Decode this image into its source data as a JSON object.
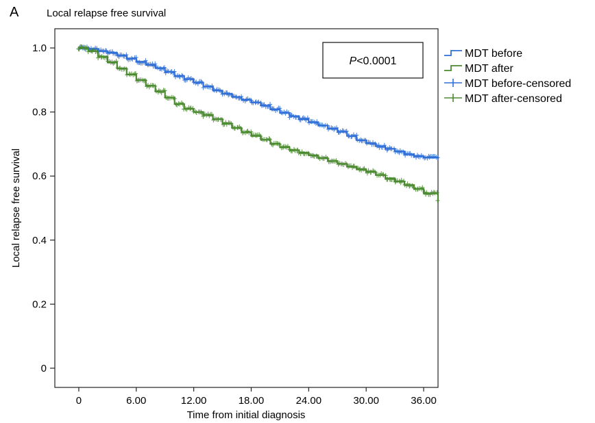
{
  "chart_data": {
    "type": "line",
    "panel_letter": "A",
    "title": "Local relapse free survival",
    "xlabel": "Time from initial diagnosis",
    "ylabel": "Local relapse free survival",
    "xlim": [
      -2.5,
      37.5
    ],
    "ylim": [
      -0.06,
      1.06
    ],
    "x_ticks": [
      0,
      6,
      12,
      18,
      24,
      30,
      36
    ],
    "x_tick_labels": [
      "0",
      "6.00",
      "12.00",
      "18.00",
      "24.00",
      "30.00",
      "36.00"
    ],
    "y_ticks": [
      0,
      0.2,
      0.4,
      0.6,
      0.8,
      1.0
    ],
    "y_tick_labels": [
      "0",
      "0.2",
      "0.4",
      "0.6",
      "0.8",
      "1.0"
    ],
    "annotation_prefix": "P",
    "annotation_suffix": "<0.0001",
    "legend_position": "right",
    "legend": [
      {
        "label": "MDT before",
        "kind": "step",
        "color": "#2f6fd6"
      },
      {
        "label": "MDT after",
        "kind": "step",
        "color": "#4a8a2f"
      },
      {
        "label": "MDT before-censored",
        "kind": "censor",
        "color": "#2f6fd6"
      },
      {
        "label": "MDT after-censored",
        "kind": "censor",
        "color": "#4a8a2f"
      }
    ],
    "series": [
      {
        "name": "MDT before",
        "color": "#2f6fd6",
        "x": [
          0,
          1,
          2,
          3,
          4,
          5,
          6,
          7,
          8,
          9,
          10,
          11,
          12,
          13,
          14,
          15,
          16,
          17,
          18,
          19,
          20,
          21,
          22,
          23,
          24,
          25,
          26,
          27,
          28,
          29,
          30,
          31,
          32,
          33,
          34,
          35,
          36,
          37.5
        ],
        "y": [
          1.0,
          0.997,
          0.99,
          0.985,
          0.977,
          0.967,
          0.957,
          0.947,
          0.937,
          0.925,
          0.913,
          0.903,
          0.892,
          0.88,
          0.867,
          0.857,
          0.847,
          0.838,
          0.83,
          0.82,
          0.808,
          0.797,
          0.787,
          0.778,
          0.768,
          0.758,
          0.748,
          0.738,
          0.725,
          0.712,
          0.702,
          0.693,
          0.685,
          0.677,
          0.668,
          0.662,
          0.658,
          0.654
        ]
      },
      {
        "name": "MDT after",
        "color": "#4a8a2f",
        "x": [
          0,
          1,
          2,
          3,
          4,
          5,
          6,
          7,
          8,
          9,
          10,
          11,
          12,
          13,
          14,
          15,
          16,
          17,
          18,
          19,
          20,
          21,
          22,
          23,
          24,
          25,
          26,
          27,
          28,
          29,
          30,
          31,
          32,
          33,
          34,
          35,
          36,
          37.5
        ],
        "y": [
          1.0,
          0.99,
          0.973,
          0.955,
          0.936,
          0.917,
          0.9,
          0.882,
          0.864,
          0.845,
          0.825,
          0.81,
          0.8,
          0.79,
          0.778,
          0.764,
          0.75,
          0.737,
          0.725,
          0.713,
          0.701,
          0.69,
          0.681,
          0.673,
          0.665,
          0.656,
          0.647,
          0.638,
          0.629,
          0.621,
          0.613,
          0.603,
          0.593,
          0.583,
          0.572,
          0.56,
          0.546,
          0.525
        ]
      }
    ]
  }
}
